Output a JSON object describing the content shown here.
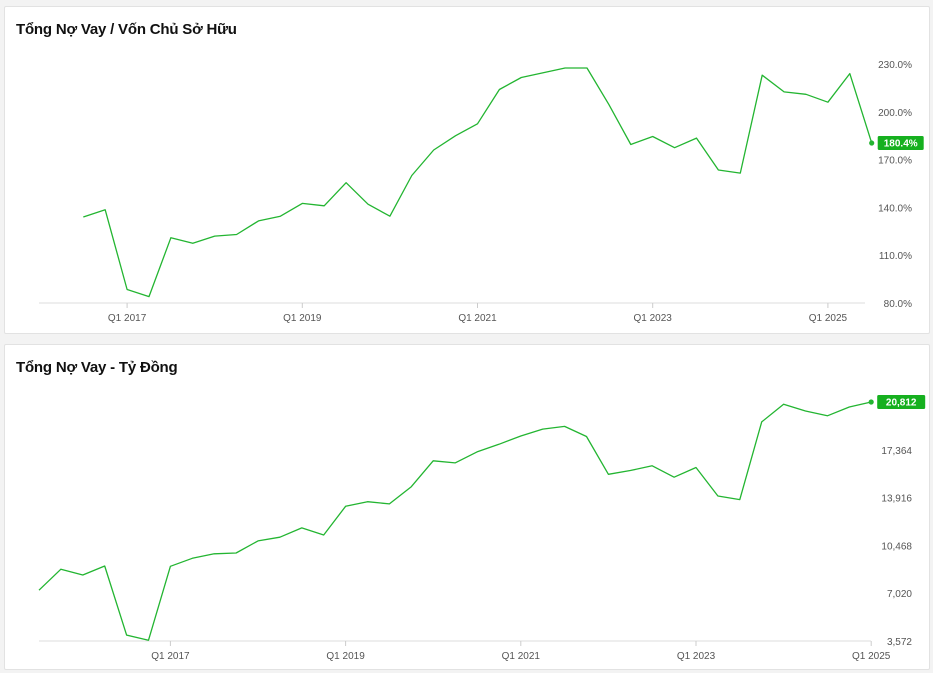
{
  "colors": {
    "line": "#23b531",
    "badge": "#16b01f",
    "axis": "#dddddd",
    "text": "#555555"
  },
  "chart_data": [
    {
      "type": "line",
      "title": "Tổng Nợ Vay / Vốn Chủ Sở Hữu",
      "x_tick_labels": [
        "Q1 2017",
        "Q1 2019",
        "Q1 2021",
        "Q1 2023",
        "Q1 2025"
      ],
      "x_tick_indices": [
        4,
        12,
        20,
        28,
        36
      ],
      "y_tick_labels": [
        "230.0%",
        "200.0%",
        "170.0%",
        "140.0%",
        "110.0%",
        "80.0%"
      ],
      "y_tick_values": [
        230,
        200,
        170,
        140,
        110,
        80
      ],
      "ylim": [
        80,
        230
      ],
      "x_start_index": 2,
      "values": [
        134,
        138.5,
        88.5,
        84,
        121,
        117.5,
        122,
        123,
        131.5,
        134.5,
        142.5,
        141,
        155.5,
        142,
        134.5,
        160,
        176,
        185,
        192.5,
        214,
        221.5,
        224.5,
        227.5,
        227.5,
        204.5,
        179.5,
        184.5,
        177.5,
        183.5,
        163.5,
        161.5,
        223,
        212.5,
        211,
        206,
        224,
        180.4
      ],
      "last_value_label": "180.4%",
      "series": [
        {
          "values": "values"
        }
      ]
    },
    {
      "type": "line",
      "title": "Tổng Nợ Vay - Tỷ Đồng",
      "x_tick_labels": [
        "Q1 2017",
        "Q1 2019",
        "Q1 2021",
        "Q1 2023",
        "Q1 2025"
      ],
      "x_tick_indices": [
        6,
        14,
        22,
        30,
        38
      ],
      "y_tick_labels": [
        "17,364",
        "13,916",
        "10,468",
        "7,020",
        "3,572"
      ],
      "y_tick_values": [
        17364,
        13916,
        10468,
        7020,
        3572
      ],
      "ylim": [
        3572,
        20812
      ],
      "x_start_index": 0,
      "values": [
        7240,
        8750,
        8330,
        8980,
        4000,
        3630,
        8960,
        9540,
        9860,
        9920,
        10790,
        11060,
        11730,
        11220,
        13290,
        13620,
        13460,
        14700,
        16570,
        16420,
        17210,
        17760,
        18360,
        18860,
        19050,
        18320,
        15600,
        15870,
        16210,
        15390,
        16090,
        14030,
        13770,
        19380,
        20650,
        20160,
        19820,
        20450,
        20812
      ],
      "last_value_label": "20,812"
    }
  ]
}
